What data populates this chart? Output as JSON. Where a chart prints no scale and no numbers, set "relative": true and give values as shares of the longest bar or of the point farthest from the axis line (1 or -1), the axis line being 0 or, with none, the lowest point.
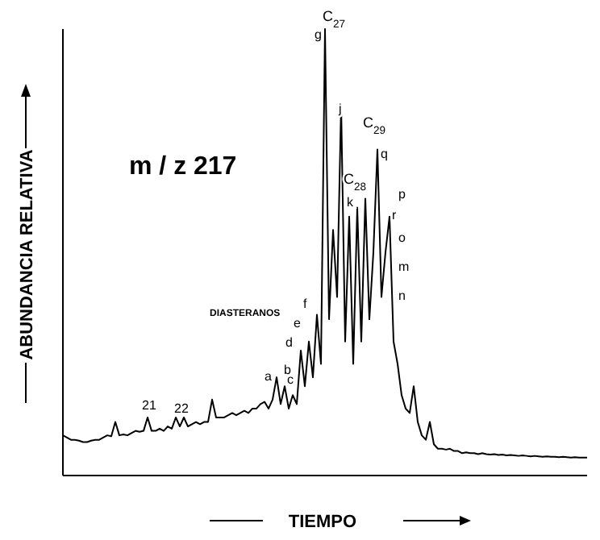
{
  "chart_data": {
    "type": "line",
    "relative": true,
    "xlabel": "TIEMPO",
    "ylabel": "ABUNDANCIA RELATIVA",
    "color": "#000000",
    "marker": "none",
    "grid": false,
    "legend": false,
    "categories": [
      null,
      null,
      null,
      null,
      null,
      null,
      null,
      null,
      null,
      null,
      null,
      null,
      null,
      null,
      null,
      null,
      null,
      null,
      null,
      null,
      null,
      null,
      null,
      null,
      null,
      null,
      null,
      null,
      null,
      null,
      null,
      null,
      null,
      null,
      null,
      null,
      null,
      null,
      null,
      null,
      null,
      null,
      null,
      null,
      null,
      null,
      null,
      null,
      null,
      null,
      null,
      null,
      null,
      null,
      null,
      null,
      null,
      null,
      null,
      null,
      null,
      null,
      null,
      null,
      null,
      null,
      null,
      null,
      null,
      null,
      null,
      null,
      null,
      null,
      null,
      null,
      null,
      null,
      null,
      null,
      null,
      null,
      null,
      null,
      null,
      null,
      null,
      null,
      null,
      null,
      null,
      null,
      null,
      null,
      null,
      null,
      null,
      null,
      null,
      null,
      null,
      null,
      null,
      null,
      null,
      null,
      null,
      null,
      null,
      null,
      null,
      null,
      null,
      null,
      null,
      null,
      null,
      null,
      null,
      null,
      null,
      null,
      null,
      null,
      null,
      null,
      null,
      null,
      null,
      null,
      null
    ],
    "values": [
      0.09,
      0.085,
      0.08,
      0.08,
      0.078,
      0.075,
      0.075,
      0.078,
      0.08,
      0.08,
      0.085,
      0.09,
      0.088,
      0.12,
      0.09,
      0.092,
      0.09,
      0.095,
      0.1,
      0.098,
      0.1,
      0.13,
      0.1,
      0.1,
      0.105,
      0.1,
      0.11,
      0.105,
      0.13,
      0.11,
      0.13,
      0.11,
      0.115,
      0.12,
      0.115,
      0.12,
      0.12,
      0.17,
      0.13,
      0.13,
      0.13,
      0.135,
      0.14,
      0.135,
      0.14,
      0.145,
      0.14,
      0.15,
      0.15,
      0.16,
      0.165,
      0.15,
      0.17,
      0.22,
      0.16,
      0.2,
      0.15,
      0.18,
      0.16,
      0.28,
      0.2,
      0.3,
      0.22,
      0.36,
      0.25,
      1.0,
      0.35,
      0.55,
      0.4,
      0.83,
      0.3,
      0.58,
      0.25,
      0.6,
      0.3,
      0.62,
      0.35,
      0.5,
      0.73,
      0.4,
      0.5,
      0.58,
      0.3,
      0.25,
      0.18,
      0.15,
      0.14,
      0.2,
      0.12,
      0.09,
      0.08,
      0.12,
      0.07,
      0.06,
      0.06,
      0.058,
      0.06,
      0.055,
      0.055,
      0.05,
      0.052,
      0.05,
      0.05,
      0.048,
      0.05,
      0.048,
      0.047,
      0.048,
      0.046,
      0.047,
      0.045,
      0.046,
      0.045,
      0.044,
      0.045,
      0.044,
      0.043,
      0.044,
      0.043,
      0.042,
      0.043,
      0.042,
      0.042,
      0.041,
      0.042,
      0.041,
      0.04,
      0.041,
      0.04,
      0.04,
      0.04
    ],
    "annotations": [
      "m / z 217",
      "21",
      "22",
      "a",
      "b",
      "c",
      "d",
      "e",
      "f",
      "g",
      "j",
      "k",
      "m",
      "n",
      "o",
      "p",
      "q",
      "r",
      "C$_{27}$",
      "C$_{28}$",
      "C$_{29}$",
      "DIASTERANOS"
    ]
  }
}
